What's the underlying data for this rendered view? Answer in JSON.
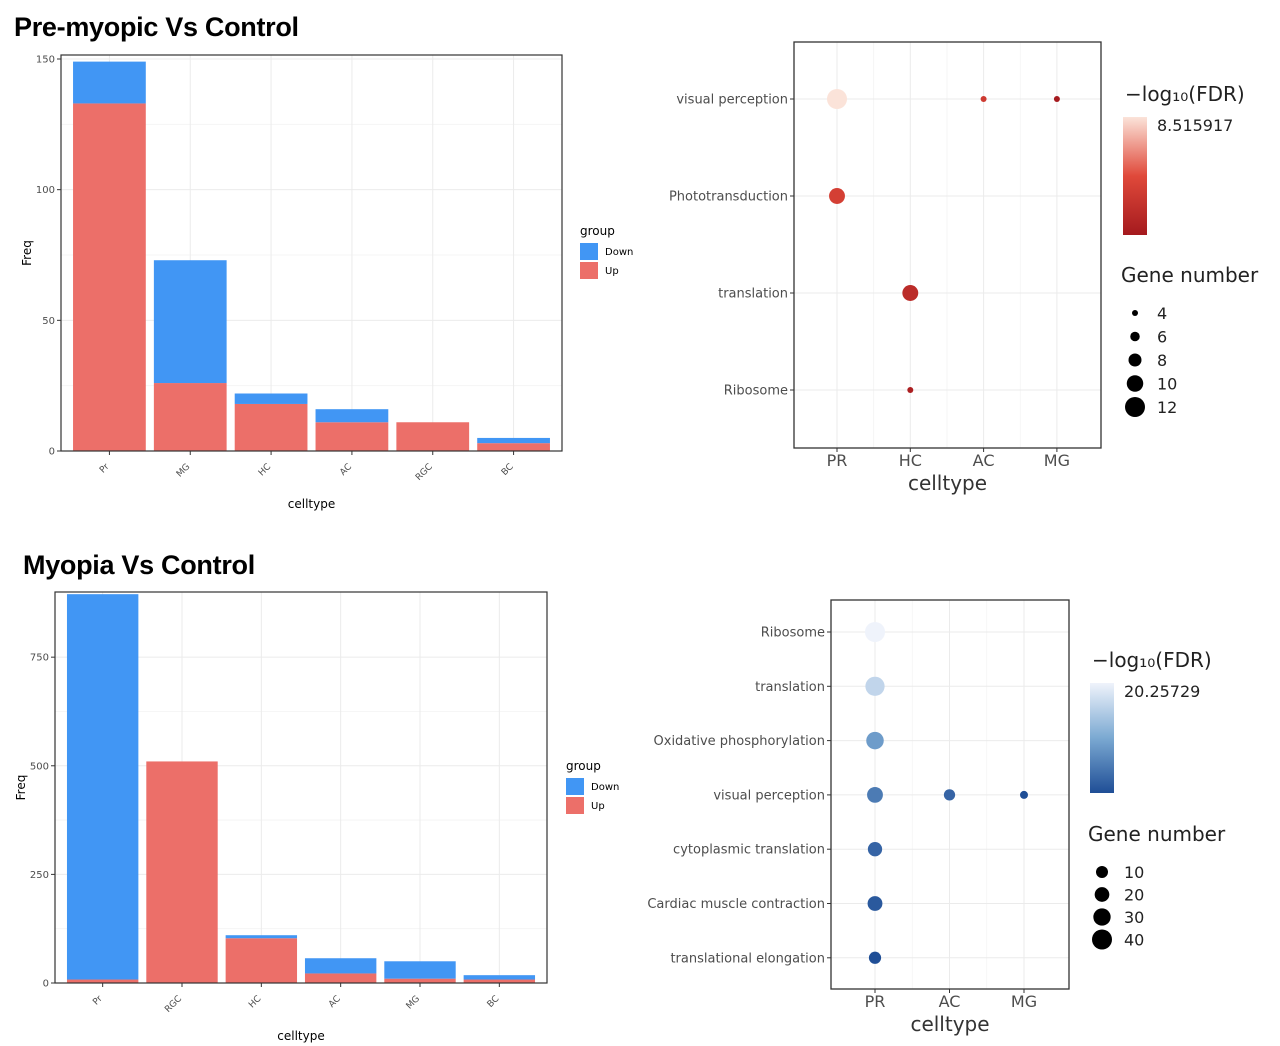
{
  "sections": [
    {
      "title": "Pre-myopic Vs Control"
    },
    {
      "title": "Myopia Vs Control"
    }
  ],
  "colors": {
    "down": "#4196F4",
    "up": "#EC6F69",
    "panel_bg": "#ffffff",
    "grid": "#ebebeb",
    "red_high": "#FBE3D9",
    "red_mid": "#E0493A",
    "red_low": "#A51A1E",
    "blue_high": "#EFF3FB",
    "blue_mid": "#7BA9D2",
    "blue_low": "#1F4E96"
  },
  "chart_data": [
    {
      "type": "bar",
      "stacked": true,
      "categories": [
        "Pr",
        "MG",
        "HC",
        "AC",
        "RGC",
        "BC"
      ],
      "series": [
        {
          "name": "Up",
          "values": [
            133,
            26,
            18,
            11,
            11,
            3
          ]
        },
        {
          "name": "Down",
          "values": [
            16,
            47,
            4,
            5,
            0,
            2
          ]
        }
      ],
      "xlabel": "celltype",
      "ylabel": "Freq",
      "ylim": [
        0,
        150
      ],
      "yticks": [
        "0",
        "50",
        "100",
        "150"
      ],
      "legend_title": "group",
      "legend_position": "right",
      "grid": true
    },
    {
      "type": "scatter",
      "x_categories": [
        "PR",
        "HC",
        "AC",
        "MG"
      ],
      "y_categories": [
        "visual perception",
        "Phototransduction",
        "translation",
        "Ribosome"
      ],
      "points": [
        {
          "x": "PR",
          "y": "visual perception",
          "gene_number": 12,
          "neg_log10_fdr": 8.515917
        },
        {
          "x": "AC",
          "y": "visual perception",
          "gene_number": 4,
          "neg_log10_fdr": 5.0
        },
        {
          "x": "MG",
          "y": "visual perception",
          "gene_number": 4,
          "neg_log10_fdr": 3.2
        },
        {
          "x": "PR",
          "y": "Phototransduction",
          "gene_number": 8,
          "neg_log10_fdr": 5.3
        },
        {
          "x": "HC",
          "y": "translation",
          "gene_number": 8,
          "neg_log10_fdr": 4.2
        },
        {
          "x": "HC",
          "y": "Ribosome",
          "gene_number": 4,
          "neg_log10_fdr": 3.5
        }
      ],
      "xlabel": "celltype",
      "color_legend_title": "−log₁₀(FDR)",
      "color_legend_label": "8.515917",
      "size_legend_title": "Gene number",
      "size_legend_values": [
        "4",
        "6",
        "8",
        "10",
        "12"
      ],
      "legend_position": "right",
      "grid": true
    },
    {
      "type": "bar",
      "stacked": true,
      "categories": [
        "Pr",
        "RGC",
        "HC",
        "AC",
        "MG",
        "BC"
      ],
      "series": [
        {
          "name": "Up",
          "values": [
            8,
            510,
            103,
            22,
            10,
            8
          ]
        },
        {
          "name": "Down",
          "values": [
            887,
            0,
            7,
            35,
            40,
            10
          ]
        }
      ],
      "xlabel": "celltype",
      "ylabel": "Freq",
      "ylim": [
        0,
        900
      ],
      "yticks": [
        "0",
        "250",
        "500",
        "750"
      ],
      "legend_title": "group",
      "legend_position": "right",
      "grid": true
    },
    {
      "type": "scatter",
      "x_categories": [
        "PR",
        "AC",
        "MG"
      ],
      "y_categories": [
        "Ribosome",
        "translation",
        "Oxidative phosphorylation",
        "visual perception",
        "cytoplasmic translation",
        "Cardiac muscle contraction",
        "translational elongation"
      ],
      "points": [
        {
          "x": "PR",
          "y": "Ribosome",
          "gene_number": 45,
          "neg_log10_fdr": 20.25729
        },
        {
          "x": "PR",
          "y": "translation",
          "gene_number": 40,
          "neg_log10_fdr": 17
        },
        {
          "x": "PR",
          "y": "Oxidative phosphorylation",
          "gene_number": 30,
          "neg_log10_fdr": 11
        },
        {
          "x": "PR",
          "y": "visual perception",
          "gene_number": 22,
          "neg_log10_fdr": 8
        },
        {
          "x": "AC",
          "y": "visual perception",
          "gene_number": 8,
          "neg_log10_fdr": 6
        },
        {
          "x": "MG",
          "y": "visual perception",
          "gene_number": 5,
          "neg_log10_fdr": 4
        },
        {
          "x": "PR",
          "y": "cytoplasmic translation",
          "gene_number": 16,
          "neg_log10_fdr": 6
        },
        {
          "x": "PR",
          "y": "Cardiac muscle contraction",
          "gene_number": 18,
          "neg_log10_fdr": 5
        },
        {
          "x": "PR",
          "y": "translational elongation",
          "gene_number": 10,
          "neg_log10_fdr": 4
        }
      ],
      "xlabel": "celltype",
      "color_legend_title": "−log₁₀(FDR)",
      "color_legend_label": "20.25729",
      "size_legend_title": "Gene number",
      "size_legend_values": [
        "10",
        "20",
        "30",
        "40"
      ],
      "legend_position": "right",
      "grid": true
    }
  ]
}
